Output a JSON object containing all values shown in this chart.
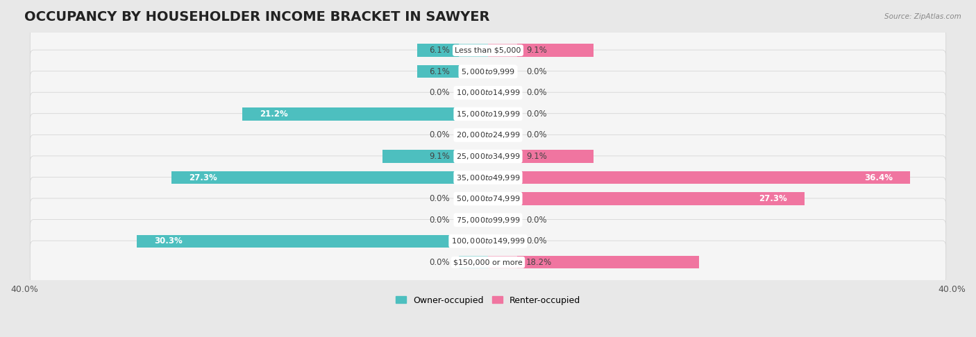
{
  "title": "OCCUPANCY BY HOUSEHOLDER INCOME BRACKET IN SAWYER",
  "source": "Source: ZipAtlas.com",
  "categories": [
    "Less than $5,000",
    "$5,000 to $9,999",
    "$10,000 to $14,999",
    "$15,000 to $19,999",
    "$20,000 to $24,999",
    "$25,000 to $34,999",
    "$35,000 to $49,999",
    "$50,000 to $74,999",
    "$75,000 to $99,999",
    "$100,000 to $149,999",
    "$150,000 or more"
  ],
  "owner_values": [
    6.1,
    6.1,
    0.0,
    21.2,
    0.0,
    9.1,
    27.3,
    0.0,
    0.0,
    30.3,
    0.0
  ],
  "renter_values": [
    9.1,
    0.0,
    0.0,
    0.0,
    0.0,
    9.1,
    36.4,
    27.3,
    0.0,
    0.0,
    18.2
  ],
  "owner_color": "#4dbfbf",
  "owner_light": "#a8dede",
  "renter_color": "#f075a0",
  "renter_light": "#f5b8cc",
  "background_color": "#e8e8e8",
  "bar_background": "#f5f5f5",
  "bar_bg_stroke": "#d0d0d0",
  "axis_max": 40.0,
  "title_fontsize": 14,
  "label_fontsize": 8.5,
  "category_fontsize": 8,
  "bar_height": 0.6,
  "legend_fontsize": 9,
  "stub_size": 2.5
}
